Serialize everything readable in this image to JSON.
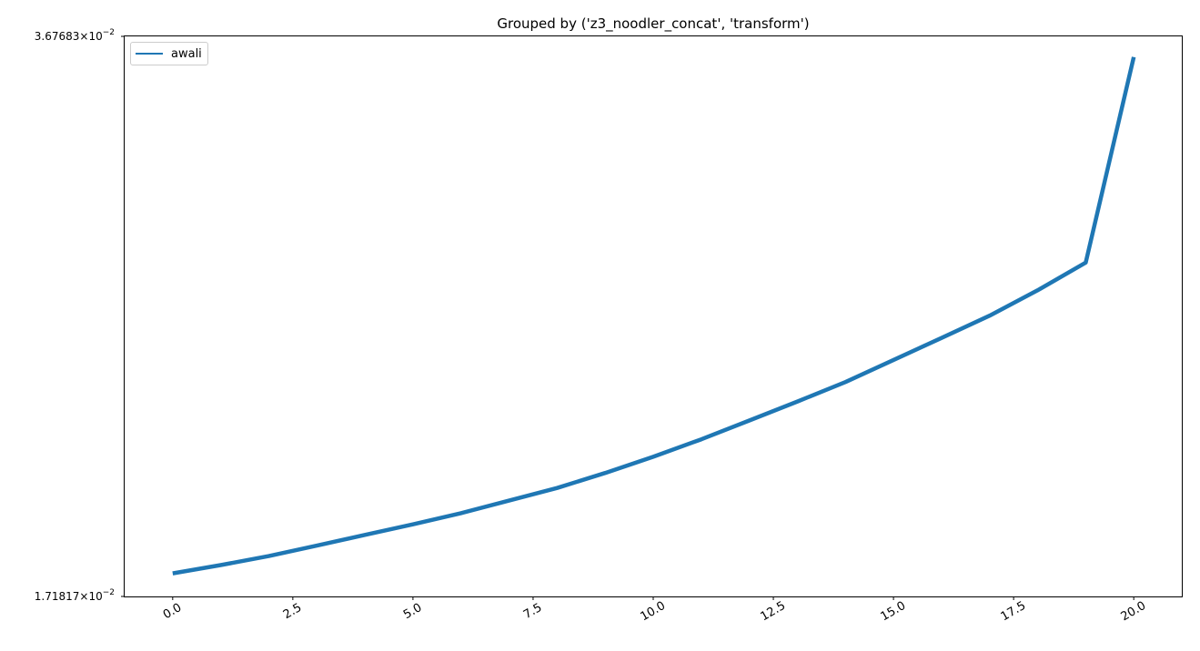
{
  "chart_data": {
    "type": "line",
    "title": "Grouped by ('z3_noodler_concat', 'transform')",
    "xlabel": "",
    "ylabel": "",
    "xlim": [
      -1.0,
      21.0
    ],
    "ylim": [
      0.0171817,
      0.0367683
    ],
    "yscale": "log",
    "grid": false,
    "legend_position": "upper left",
    "x_ticks": [
      0.0,
      2.5,
      5.0,
      7.5,
      10.0,
      12.5,
      15.0,
      17.5,
      20.0
    ],
    "x_tick_labels": [
      "0.0",
      "2.5",
      "5.0",
      "7.5",
      "10.0",
      "12.5",
      "15.0",
      "17.5",
      "20.0"
    ],
    "y_ticks": [
      0.0171817,
      0.0367683
    ],
    "y_tick_labels": [
      {
        "mantissa": "1.71817",
        "base": "10",
        "exp": "−2"
      },
      {
        "mantissa": "3.67683",
        "base": "10",
        "exp": "−2"
      }
    ],
    "series": [
      {
        "name": "awali",
        "color": "#1f77b4",
        "x": [
          0,
          1,
          2,
          3,
          4,
          5,
          6,
          7,
          8,
          9,
          10,
          11,
          12,
          13,
          14,
          15,
          16,
          17,
          18,
          19,
          20
        ],
        "y": [
          0.01773,
          0.01793,
          0.01815,
          0.01841,
          0.01868,
          0.01895,
          0.01924,
          0.01957,
          0.01991,
          0.02032,
          0.02077,
          0.02127,
          0.02182,
          0.02239,
          0.02299,
          0.02369,
          0.02441,
          0.02516,
          0.02604,
          0.02704,
          0.03575
        ]
      }
    ]
  }
}
